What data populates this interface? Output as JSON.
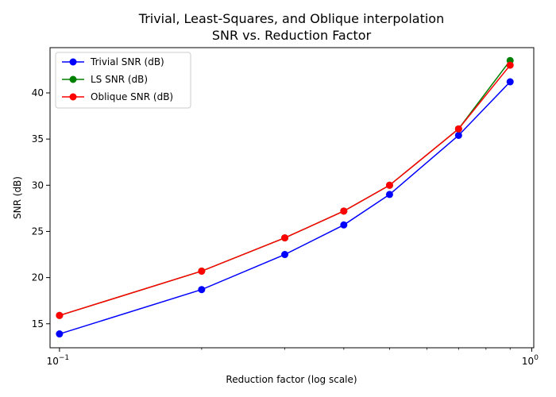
{
  "chart_data": {
    "type": "line",
    "title": "Trivial, Least-Squares, and Oblique interpolation",
    "subtitle": "SNR vs. Reduction Factor",
    "xlabel": "Reduction factor (log scale)",
    "ylabel": "SNR (dB)",
    "xscale": "log",
    "xlim": [
      0.0955,
      1.01
    ],
    "ylim": [
      12.4,
      44.9
    ],
    "xticks": [
      {
        "value": 0.1,
        "label": "10^-1"
      },
      {
        "value": 1.0,
        "label": "10^0"
      }
    ],
    "yticks": [
      15,
      20,
      25,
      30,
      35,
      40
    ],
    "x": [
      0.1,
      0.2,
      0.3,
      0.4,
      0.5,
      0.7,
      0.9
    ],
    "series": [
      {
        "name": "Trivial SNR (dB)",
        "color": "#0000ff",
        "values": [
          13.9,
          18.7,
          22.5,
          25.7,
          29.0,
          35.4,
          41.2
        ]
      },
      {
        "name": "LS SNR (dB)",
        "color": "#008000",
        "values": [
          15.9,
          20.7,
          24.3,
          27.2,
          30.0,
          36.1,
          43.5
        ]
      },
      {
        "name": "Oblique SNR (dB)",
        "color": "#ff0000",
        "values": [
          15.9,
          20.7,
          24.3,
          27.2,
          30.0,
          36.1,
          43.0
        ]
      }
    ],
    "legend_position": "top-left",
    "grid": false
  }
}
